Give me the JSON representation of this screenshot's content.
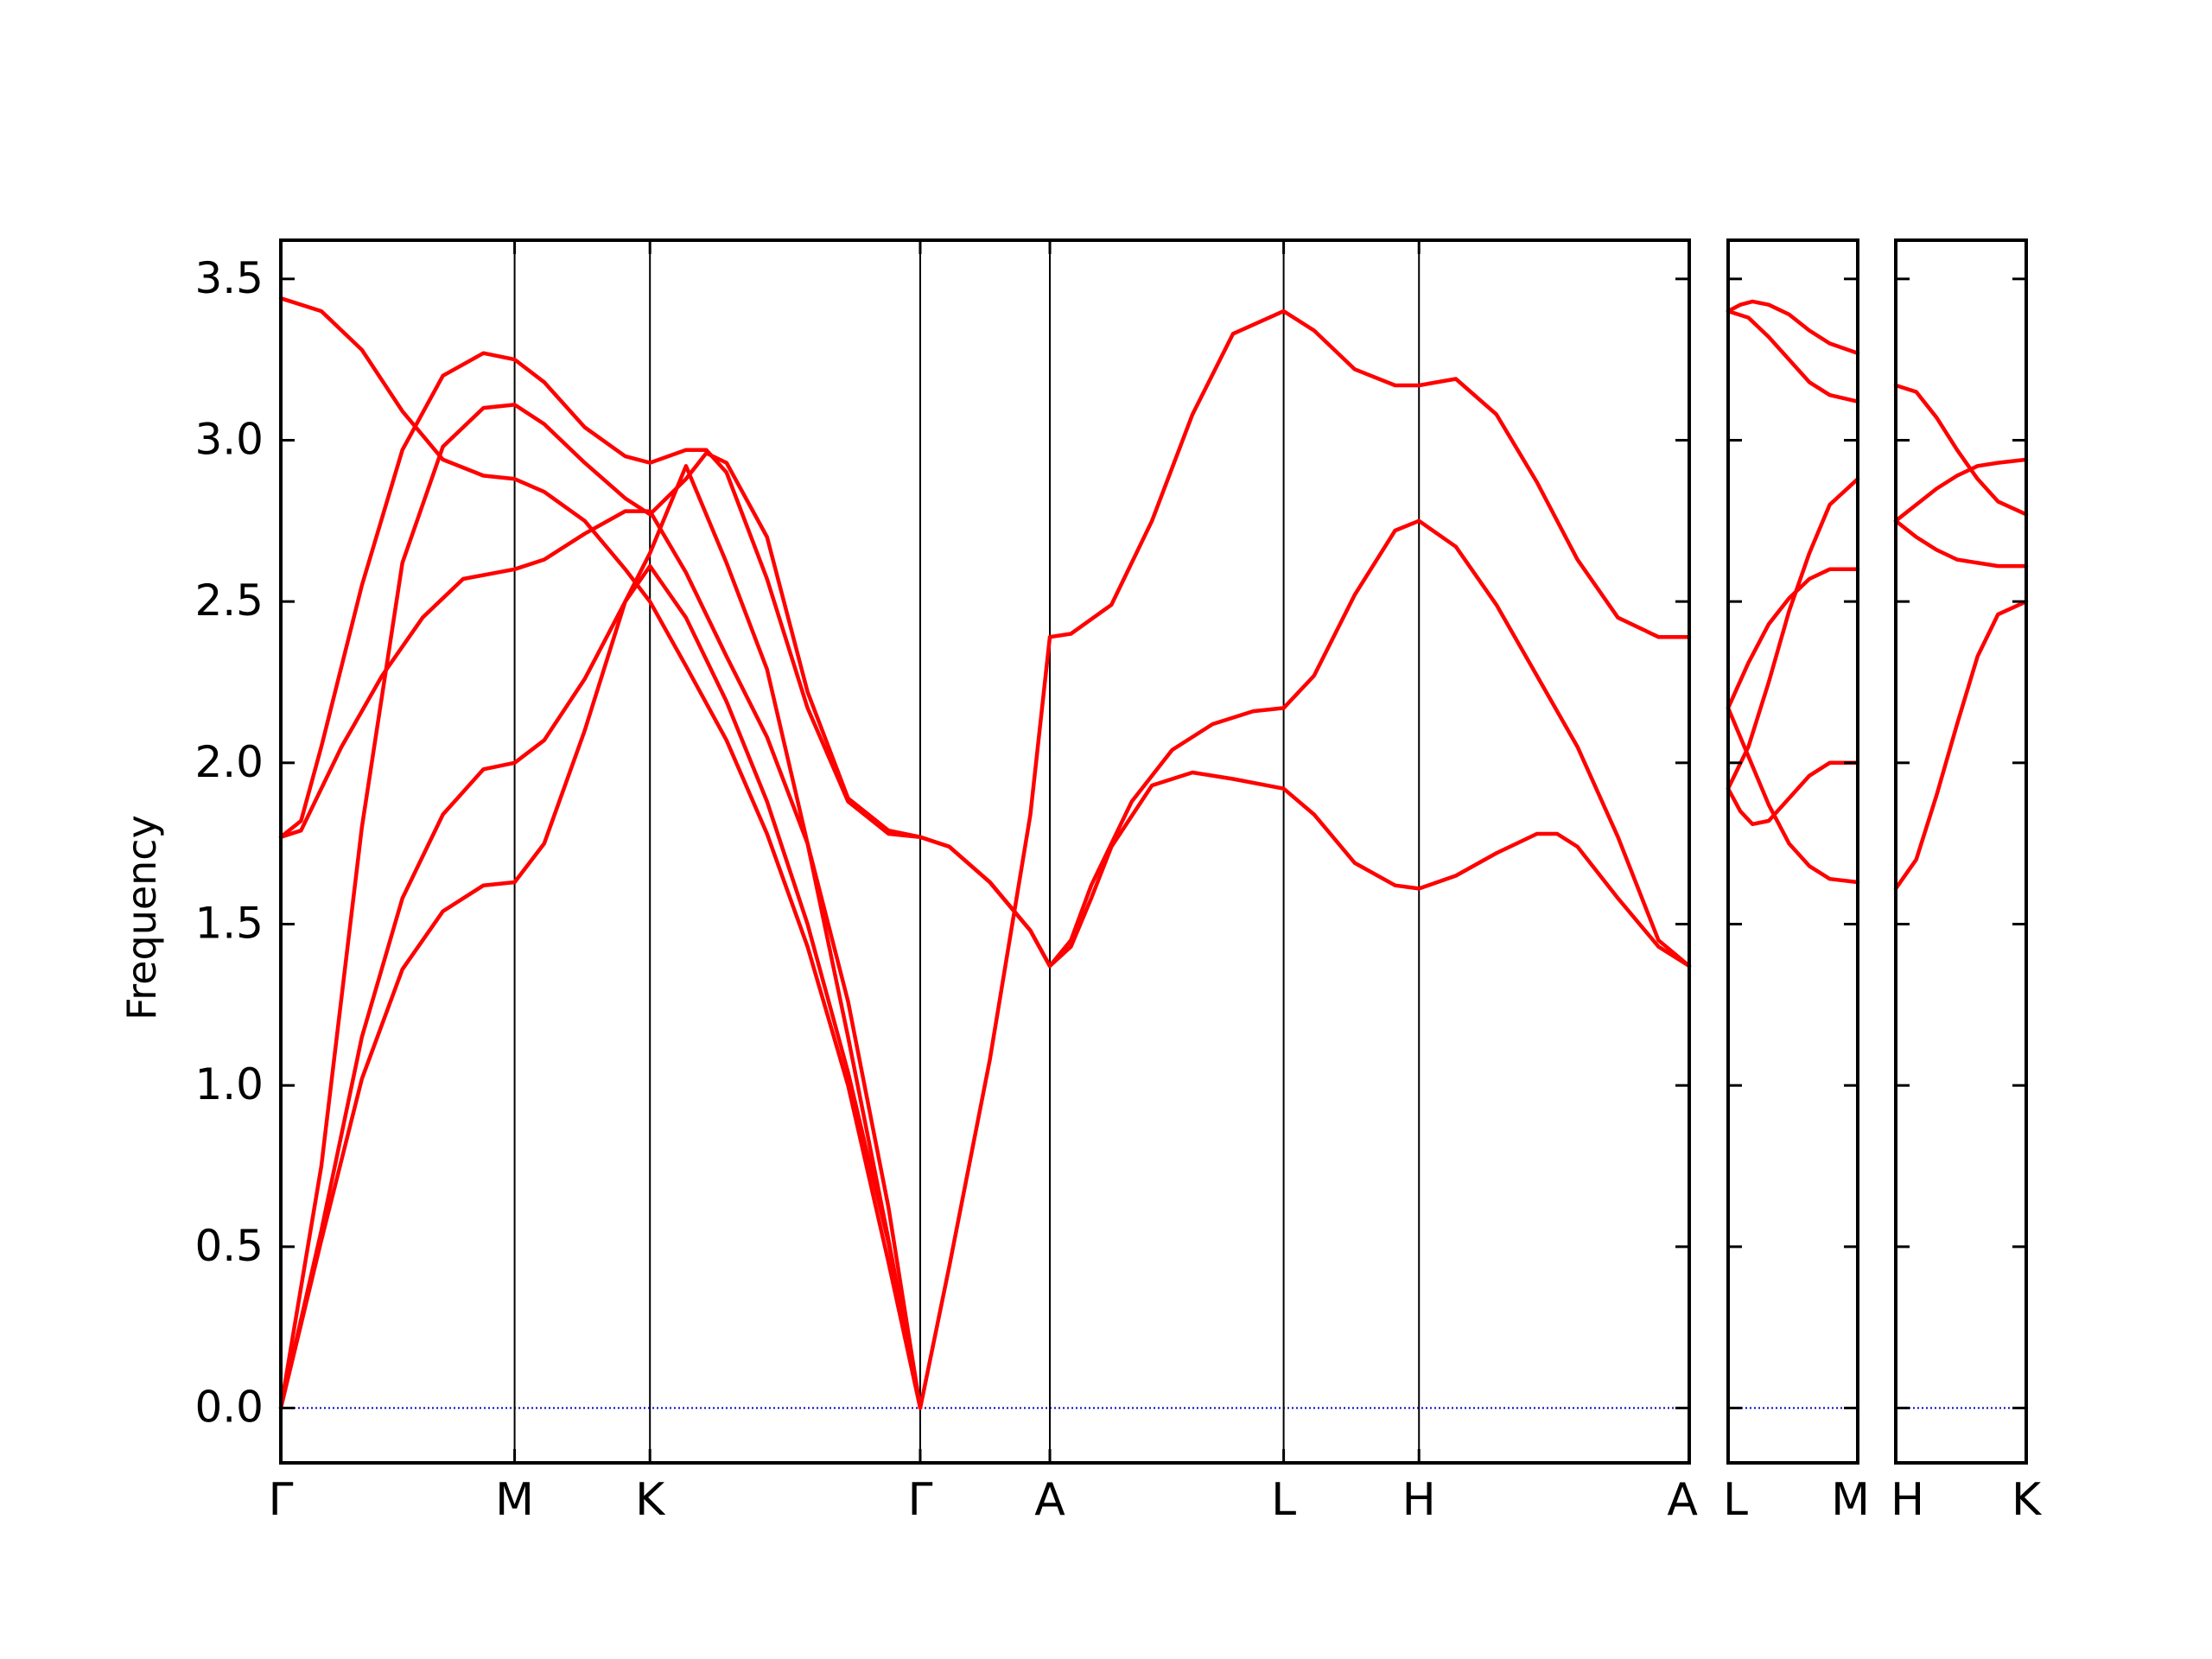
{
  "chart_data": {
    "type": "line",
    "ylabel": "Frequency",
    "ylim": [
      -0.17,
      3.62
    ],
    "yticks": [
      "0.0",
      "0.5",
      "1.0",
      "1.5",
      "2.0",
      "2.5",
      "3.0",
      "3.5"
    ],
    "grid": false,
    "line_color": "#ff0000",
    "zero_line_color": "#0000cc",
    "panels": [
      {
        "path": [
          "Γ",
          "M",
          "K",
          "Γ",
          "A",
          "L",
          "H",
          "A"
        ],
        "tick_x": [
          0,
          0.577,
          0.911,
          1.578,
          1.898,
          2.475,
          2.809,
          3.476
        ],
        "bands": [
          [
            [
              0,
              3.44
            ],
            [
              0.1,
              3.4
            ],
            [
              0.2,
              3.28
            ],
            [
              0.3,
              3.09
            ],
            [
              0.4,
              2.94
            ],
            [
              0.5,
              2.89
            ],
            [
              0.577,
              2.88
            ],
            [
              0.65,
              2.84
            ],
            [
              0.75,
              2.75
            ],
            [
              0.85,
              2.6
            ],
            [
              0.911,
              2.5
            ],
            [
              1.0,
              2.3
            ],
            [
              1.1,
              2.07
            ],
            [
              1.2,
              1.78
            ],
            [
              1.3,
              1.43
            ],
            [
              1.4,
              1.0
            ],
            [
              1.5,
              0.45
            ],
            [
              1.578,
              0.0
            ]
          ],
          [
            [
              0,
              1.77
            ],
            [
              0.05,
              1.79
            ],
            [
              0.15,
              2.05
            ],
            [
              0.25,
              2.27
            ],
            [
              0.35,
              2.45
            ],
            [
              0.45,
              2.57
            ],
            [
              0.577,
              2.6
            ],
            [
              0.65,
              2.63
            ],
            [
              0.75,
              2.71
            ],
            [
              0.85,
              2.78
            ],
            [
              0.911,
              2.78
            ],
            [
              1.0,
              2.59
            ],
            [
              1.1,
              2.33
            ],
            [
              1.2,
              2.08
            ],
            [
              1.3,
              1.75
            ],
            [
              1.4,
              1.26
            ],
            [
              1.5,
              0.62
            ],
            [
              1.578,
              0.0
            ]
          ],
          [
            [
              0,
              1.77
            ],
            [
              0.05,
              1.82
            ],
            [
              0.1,
              2.05
            ],
            [
              0.2,
              2.55
            ],
            [
              0.3,
              2.97
            ],
            [
              0.4,
              3.2
            ],
            [
              0.5,
              3.27
            ],
            [
              0.577,
              3.25
            ],
            [
              0.65,
              3.18
            ],
            [
              0.75,
              3.04
            ],
            [
              0.85,
              2.95
            ],
            [
              0.911,
              2.93
            ],
            [
              1.0,
              2.97
            ],
            [
              1.05,
              2.97
            ],
            [
              1.1,
              2.9
            ],
            [
              1.2,
              2.57
            ],
            [
              1.3,
              2.17
            ],
            [
              1.4,
              1.88
            ],
            [
              1.5,
              1.78
            ],
            [
              1.578,
              1.77
            ]
          ],
          [
            [
              0,
              0.0
            ],
            [
              0.1,
              0.75
            ],
            [
              0.2,
              1.8
            ],
            [
              0.3,
              2.62
            ],
            [
              0.4,
              2.98
            ],
            [
              0.5,
              3.1
            ],
            [
              0.577,
              3.11
            ],
            [
              0.65,
              3.05
            ],
            [
              0.75,
              2.93
            ],
            [
              0.85,
              2.82
            ],
            [
              0.911,
              2.77
            ],
            [
              1.0,
              2.88
            ],
            [
              1.05,
              2.96
            ],
            [
              1.1,
              2.93
            ],
            [
              1.2,
              2.7
            ],
            [
              1.3,
              2.22
            ],
            [
              1.4,
              1.89
            ],
            [
              1.5,
              1.79
            ],
            [
              1.578,
              1.77
            ]
          ],
          [
            [
              0,
              0.0
            ],
            [
              0.1,
              0.55
            ],
            [
              0.2,
              1.15
            ],
            [
              0.3,
              1.58
            ],
            [
              0.4,
              1.84
            ],
            [
              0.5,
              1.98
            ],
            [
              0.577,
              2.0
            ],
            [
              0.65,
              2.07
            ],
            [
              0.75,
              2.26
            ],
            [
              0.85,
              2.5
            ],
            [
              0.911,
              2.65
            ],
            [
              1.0,
              2.92
            ],
            [
              1.1,
              2.62
            ],
            [
              1.2,
              2.29
            ],
            [
              1.3,
              1.75
            ],
            [
              1.4,
              1.15
            ],
            [
              1.5,
              0.52
            ],
            [
              1.578,
              0.0
            ]
          ],
          [
            [
              0,
              0.0
            ],
            [
              0.1,
              0.52
            ],
            [
              0.2,
              1.02
            ],
            [
              0.3,
              1.36
            ],
            [
              0.4,
              1.54
            ],
            [
              0.5,
              1.62
            ],
            [
              0.577,
              1.63
            ],
            [
              0.65,
              1.75
            ],
            [
              0.75,
              2.1
            ],
            [
              0.85,
              2.5
            ],
            [
              0.911,
              2.61
            ],
            [
              1.0,
              2.45
            ],
            [
              1.1,
              2.19
            ],
            [
              1.2,
              1.88
            ],
            [
              1.3,
              1.5
            ],
            [
              1.4,
              1.04
            ],
            [
              1.5,
              0.51
            ],
            [
              1.578,
              0.0
            ]
          ],
          [
            [
              1.578,
              0.0
            ],
            [
              1.65,
              0.44
            ],
            [
              1.75,
              1.08
            ],
            [
              1.85,
              1.84
            ],
            [
              1.898,
              2.39
            ],
            [
              1.95,
              2.4
            ],
            [
              2.05,
              2.49
            ],
            [
              2.15,
              2.75
            ],
            [
              2.25,
              3.08
            ],
            [
              2.35,
              3.33
            ],
            [
              2.475,
              3.4
            ],
            [
              2.55,
              3.34
            ],
            [
              2.65,
              3.22
            ],
            [
              2.75,
              3.17
            ],
            [
              2.809,
              3.17
            ],
            [
              2.9,
              3.19
            ],
            [
              3.0,
              3.08
            ],
            [
              3.1,
              2.87
            ],
            [
              3.2,
              2.63
            ],
            [
              3.3,
              2.45
            ],
            [
              3.4,
              2.39
            ],
            [
              3.476,
              2.39
            ]
          ],
          [
            [
              1.578,
              1.77
            ],
            [
              1.65,
              1.74
            ],
            [
              1.75,
              1.63
            ],
            [
              1.85,
              1.48
            ],
            [
              1.898,
              1.37
            ],
            [
              1.95,
              1.45
            ],
            [
              2.0,
              1.62
            ],
            [
              2.1,
              1.88
            ],
            [
              2.2,
              2.04
            ],
            [
              2.3,
              2.12
            ],
            [
              2.4,
              2.16
            ],
            [
              2.475,
              2.17
            ],
            [
              2.55,
              2.27
            ],
            [
              2.65,
              2.52
            ],
            [
              2.75,
              2.72
            ],
            [
              2.809,
              2.75
            ],
            [
              2.9,
              2.67
            ],
            [
              3.0,
              2.49
            ],
            [
              3.1,
              2.27
            ],
            [
              3.2,
              2.05
            ],
            [
              3.3,
              1.77
            ],
            [
              3.4,
              1.45
            ],
            [
              3.476,
              1.37
            ]
          ],
          [
            [
              1.578,
              1.77
            ],
            [
              1.65,
              1.74
            ],
            [
              1.75,
              1.63
            ],
            [
              1.85,
              1.48
            ],
            [
              1.898,
              1.37
            ],
            [
              1.95,
              1.43
            ],
            [
              2.0,
              1.58
            ],
            [
              2.05,
              1.74
            ],
            [
              2.15,
              1.93
            ],
            [
              2.25,
              1.97
            ],
            [
              2.35,
              1.95
            ],
            [
              2.475,
              1.92
            ],
            [
              2.55,
              1.84
            ],
            [
              2.65,
              1.69
            ],
            [
              2.75,
              1.62
            ],
            [
              2.809,
              1.61
            ],
            [
              2.9,
              1.65
            ],
            [
              3.0,
              1.72
            ],
            [
              3.1,
              1.78
            ],
            [
              3.15,
              1.78
            ],
            [
              3.2,
              1.74
            ],
            [
              3.3,
              1.58
            ],
            [
              3.4,
              1.43
            ],
            [
              3.476,
              1.37
            ]
          ]
        ]
      },
      {
        "path": [
          "L",
          "M"
        ],
        "tick_x": [
          0,
          0.319
        ],
        "bands": [
          [
            [
              0,
              3.4
            ],
            [
              0.03,
              3.42
            ],
            [
              0.06,
              3.43
            ],
            [
              0.1,
              3.42
            ],
            [
              0.15,
              3.39
            ],
            [
              0.2,
              3.34
            ],
            [
              0.25,
              3.3
            ],
            [
              0.319,
              3.27
            ]
          ],
          [
            [
              0,
              3.4
            ],
            [
              0.05,
              3.38
            ],
            [
              0.1,
              3.32
            ],
            [
              0.15,
              3.25
            ],
            [
              0.2,
              3.18
            ],
            [
              0.25,
              3.14
            ],
            [
              0.319,
              3.12
            ]
          ],
          [
            [
              0,
              2.17
            ],
            [
              0.05,
              2.31
            ],
            [
              0.1,
              2.43
            ],
            [
              0.15,
              2.51
            ],
            [
              0.2,
              2.57
            ],
            [
              0.25,
              2.6
            ],
            [
              0.319,
              2.6
            ]
          ],
          [
            [
              0,
              1.92
            ],
            [
              0.05,
              2.05
            ],
            [
              0.1,
              2.25
            ],
            [
              0.15,
              2.47
            ],
            [
              0.2,
              2.65
            ],
            [
              0.25,
              2.8
            ],
            [
              0.319,
              2.88
            ]
          ],
          [
            [
              0,
              1.92
            ],
            [
              0.03,
              1.85
            ],
            [
              0.06,
              1.81
            ],
            [
              0.1,
              1.82
            ],
            [
              0.15,
              1.89
            ],
            [
              0.2,
              1.96
            ],
            [
              0.25,
              2.0
            ],
            [
              0.319,
              2.0
            ]
          ],
          [
            [
              0,
              2.17
            ],
            [
              0.05,
              2.02
            ],
            [
              0.1,
              1.87
            ],
            [
              0.15,
              1.75
            ],
            [
              0.2,
              1.68
            ],
            [
              0.25,
              1.64
            ],
            [
              0.319,
              1.63
            ]
          ]
        ]
      },
      {
        "path": [
          "H",
          "K"
        ],
        "tick_x": [
          0,
          0.319
        ],
        "bands": [
          [
            [
              0,
              3.17
            ],
            [
              0.05,
              3.15
            ],
            [
              0.1,
              3.07
            ],
            [
              0.15,
              2.97
            ],
            [
              0.2,
              2.88
            ],
            [
              0.25,
              2.81
            ],
            [
              0.319,
              2.77
            ]
          ],
          [
            [
              0,
              2.75
            ],
            [
              0.05,
              2.8
            ],
            [
              0.1,
              2.85
            ],
            [
              0.15,
              2.89
            ],
            [
              0.2,
              2.92
            ],
            [
              0.25,
              2.93
            ],
            [
              0.319,
              2.94
            ]
          ],
          [
            [
              0,
              2.75
            ],
            [
              0.05,
              2.7
            ],
            [
              0.1,
              2.66
            ],
            [
              0.15,
              2.63
            ],
            [
              0.2,
              2.62
            ],
            [
              0.25,
              2.61
            ],
            [
              0.319,
              2.61
            ]
          ],
          [
            [
              0,
              1.61
            ],
            [
              0.05,
              1.7
            ],
            [
              0.1,
              1.9
            ],
            [
              0.15,
              2.12
            ],
            [
              0.2,
              2.33
            ],
            [
              0.25,
              2.46
            ],
            [
              0.319,
              2.5
            ]
          ]
        ]
      }
    ]
  }
}
